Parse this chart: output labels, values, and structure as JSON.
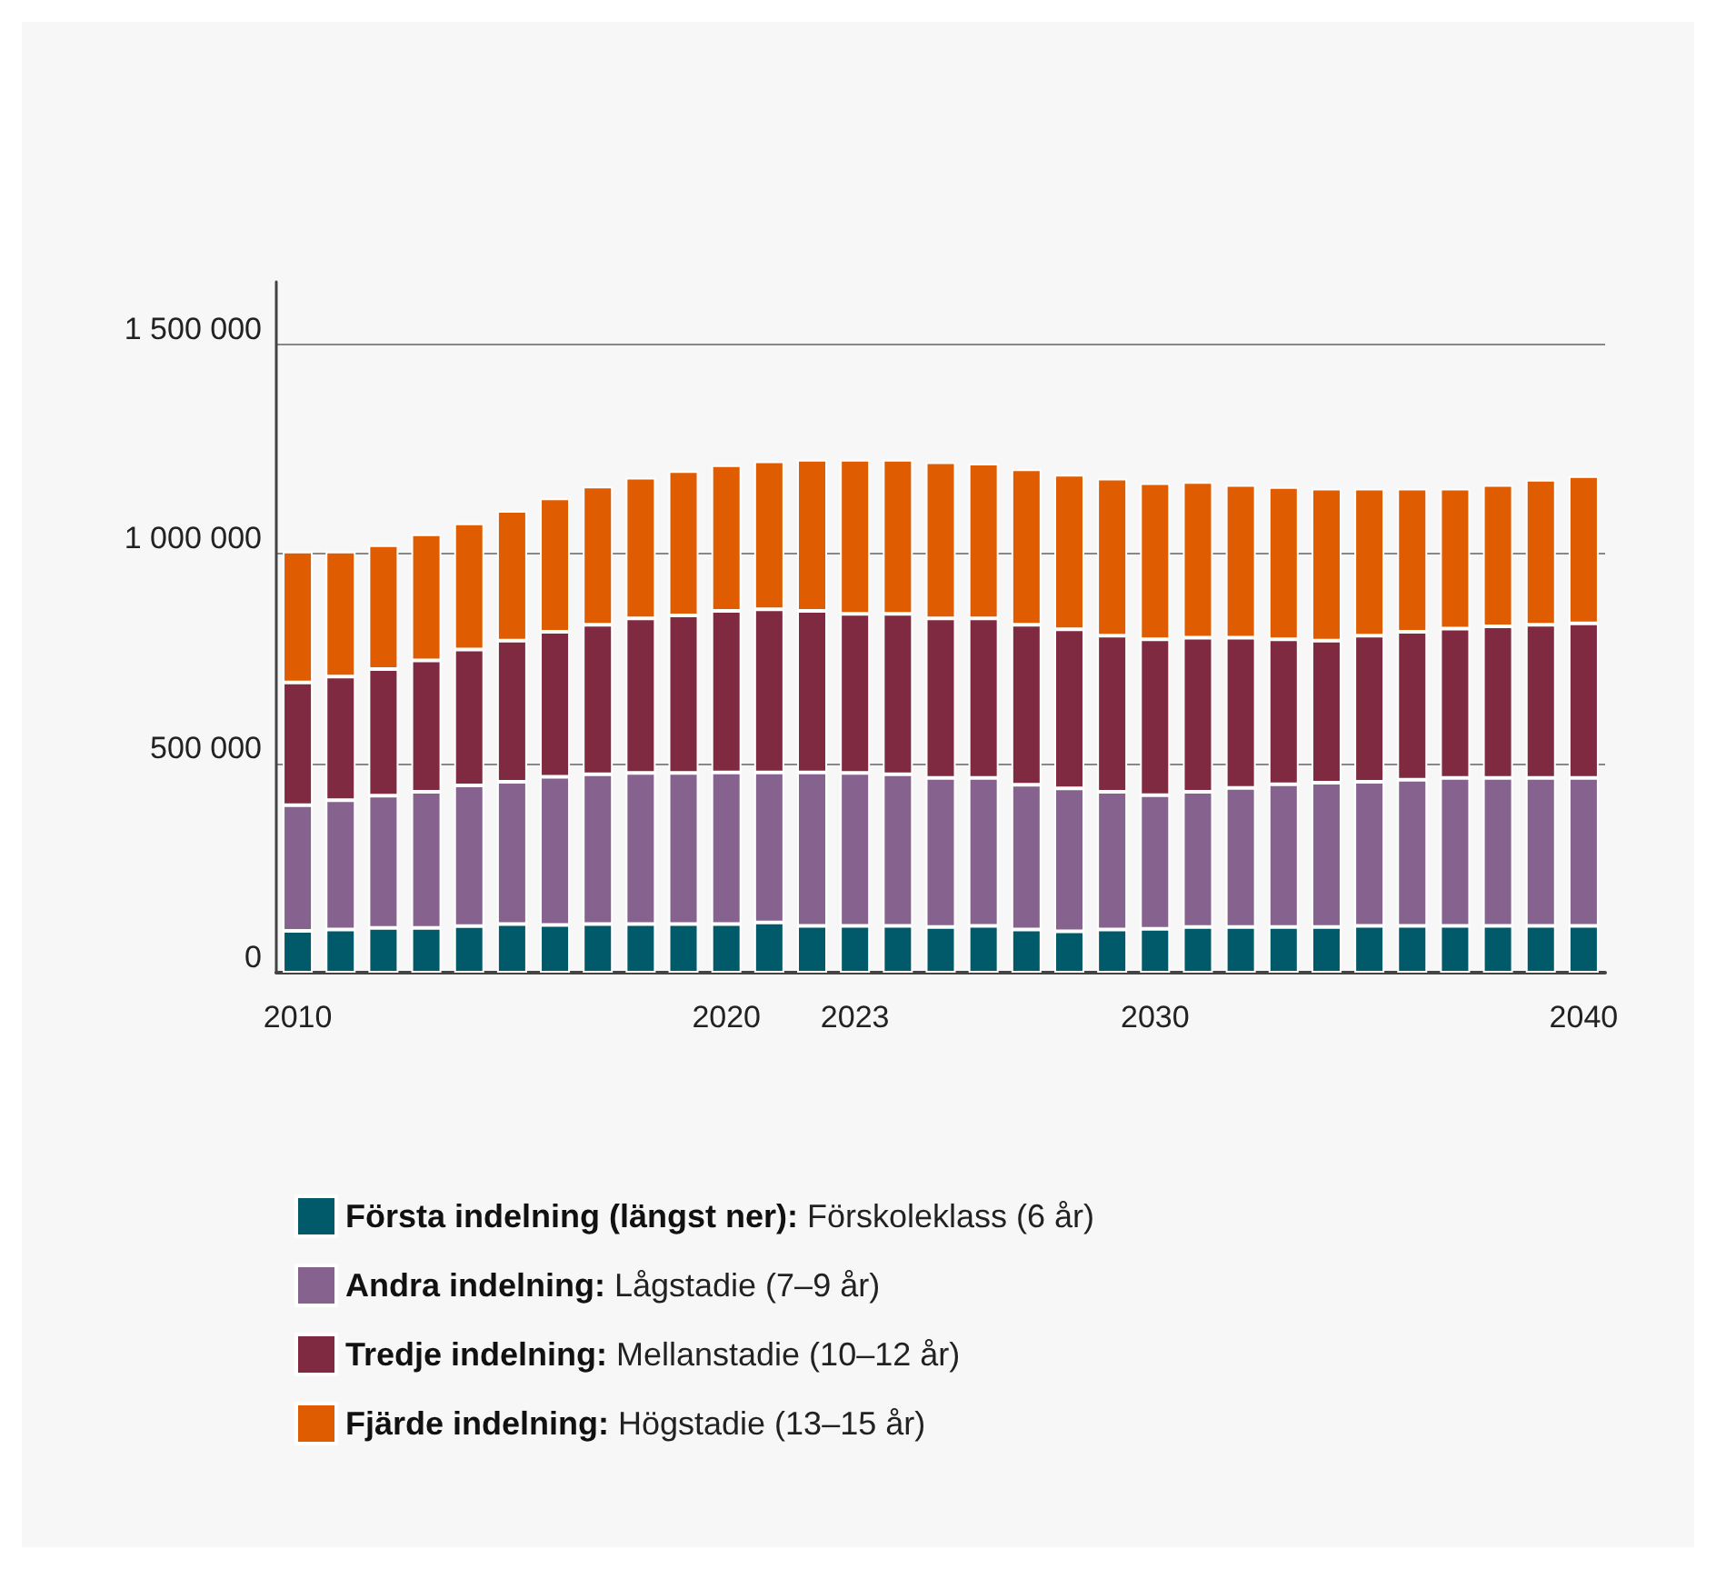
{
  "chart_data": {
    "type": "bar",
    "stacked": true,
    "categories": [
      "2010",
      null,
      null,
      null,
      null,
      null,
      null,
      null,
      null,
      null,
      "2020",
      null,
      null,
      "2023",
      null,
      null,
      null,
      null,
      null,
      null,
      "2030",
      null,
      null,
      null,
      null,
      null,
      null,
      null,
      null,
      null,
      "2040"
    ],
    "series": [
      {
        "name": "Första indelning (längst ner): Förskoleklass (6 år)",
        "color": "#005a6a",
        "values": [
          100000,
          103000,
          107000,
          107000,
          111000,
          116000,
          114000,
          116000,
          116000,
          116000,
          116000,
          120000,
          112000,
          112000,
          112000,
          109000,
          112000,
          103000,
          99000,
          103000,
          105000,
          109000,
          109000,
          109000,
          109000,
          112000,
          112000,
          112000,
          112000,
          112000,
          112000
        ]
      },
      {
        "name": "Andra indelning: Lågstadie (7–9 år)",
        "color": "#86628f",
        "values": [
          300000,
          309000,
          316000,
          325000,
          336000,
          340000,
          354000,
          358000,
          361000,
          361000,
          362000,
          358000,
          366000,
          365000,
          362000,
          356000,
          353000,
          346000,
          341000,
          329000,
          319000,
          323000,
          332000,
          341000,
          345000,
          344000,
          349000,
          353000,
          353000,
          353000,
          353000
        ]
      },
      {
        "name": "Tredje indelning: Mellanstadie (10–12 år)",
        "color": "#7f2a40",
        "values": [
          293000,
          295000,
          302000,
          314000,
          325000,
          337000,
          346000,
          357000,
          369000,
          376000,
          386000,
          390000,
          386000,
          380000,
          383000,
          381000,
          381000,
          382000,
          380000,
          373000,
          372000,
          368000,
          359000,
          346000,
          339000,
          349000,
          353000,
          357000,
          362000,
          366000,
          369000
        ]
      },
      {
        "name": "Fjärde indelning: Högstadie (13–15 år)",
        "color": "#df5c00",
        "values": [
          313000,
          299000,
          296000,
          301000,
          301000,
          310000,
          319000,
          330000,
          336000,
          345000,
          348000,
          353000,
          361000,
          368000,
          368000,
          373000,
          370000,
          371000,
          369000,
          375000,
          373000,
          372000,
          365000,
          364000,
          363000,
          351000,
          342000,
          334000,
          338000,
          346000,
          352000
        ]
      }
    ],
    "ylim": [
      0,
      1650000
    ],
    "yticks": [
      0,
      {
        "value": 500000,
        "label": "500 000"
      },
      {
        "value": 1000000,
        "label": "1 000 000"
      },
      {
        "value": 1500000,
        "label": "1 500 000"
      }
    ],
    "grid": "y",
    "legend": "bottom left"
  }
}
